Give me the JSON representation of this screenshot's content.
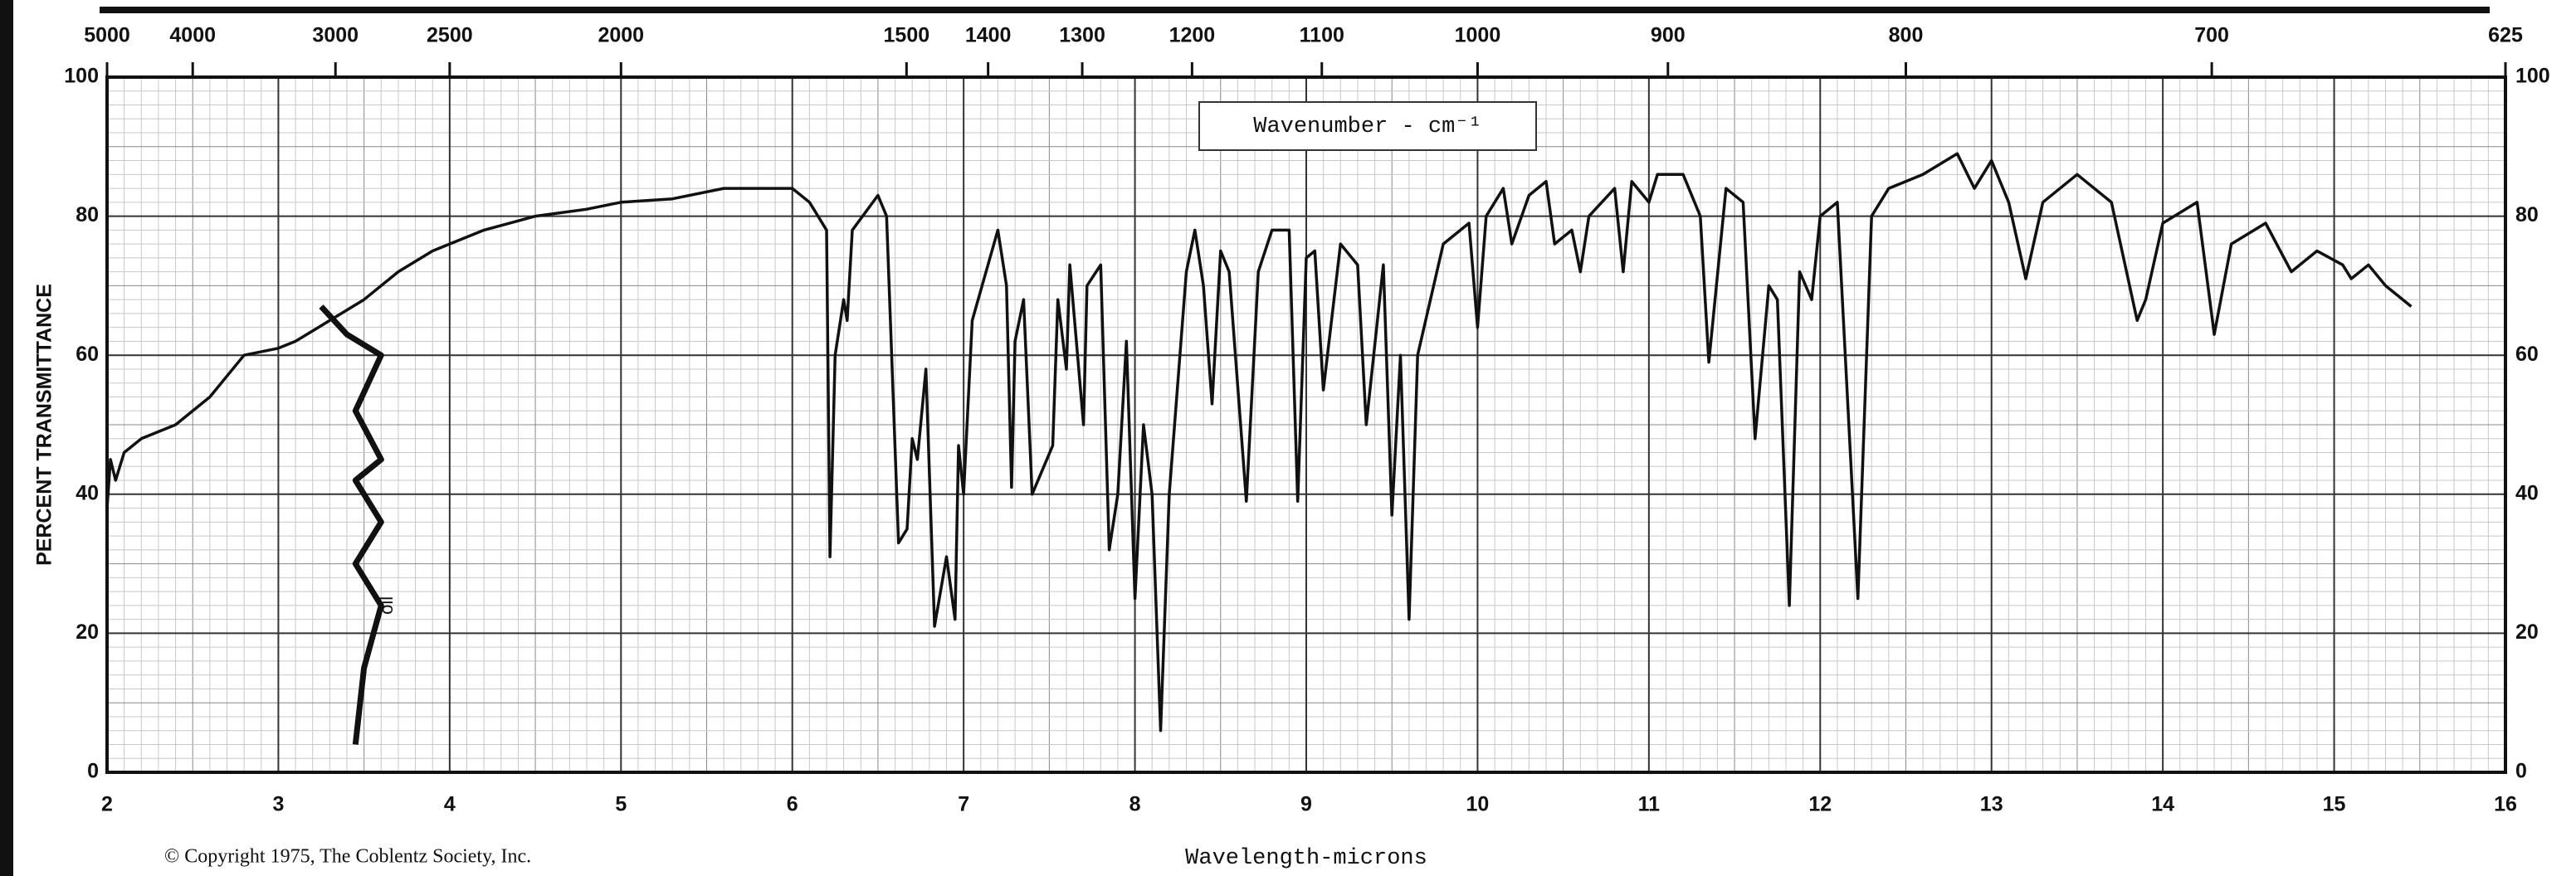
{
  "chart_data": {
    "type": "line",
    "x2label": "Wavenumber - cm⁻¹",
    "xlabel": "Wavelength-microns",
    "ylabel": "PERCENT TRANSMITTANCE",
    "annotations": [
      "© Copyright 1975, The Coblentz Society, Inc."
    ],
    "xlim": [
      2,
      16
    ],
    "xticks": [
      2,
      3,
      4,
      5,
      6,
      7,
      8,
      9,
      10,
      11,
      12,
      13,
      14,
      15,
      16
    ],
    "ylim": [
      0,
      100
    ],
    "yticks": [
      0,
      20,
      40,
      60,
      80,
      100
    ],
    "x2scale": "reciprocal",
    "x2ticks": [
      5000,
      4000,
      3000,
      2500,
      2000,
      1500,
      1400,
      1300,
      1200,
      1100,
      1000,
      900,
      800,
      700,
      625
    ],
    "grid": true,
    "series": [
      {
        "color": "#111111",
        "x": [
          2.0,
          2.02,
          2.05,
          2.1,
          2.2,
          2.4,
          2.6,
          2.7,
          2.8,
          3.0,
          3.1,
          3.3,
          3.5,
          3.7,
          3.9,
          4.2,
          4.5,
          4.8,
          5.0,
          5.3,
          5.6,
          5.9,
          6.0,
          6.1,
          6.2,
          6.22,
          6.25,
          6.3,
          6.32,
          6.35,
          6.5,
          6.55,
          6.62,
          6.67,
          6.7,
          6.73,
          6.78,
          6.83,
          6.9,
          6.95,
          6.97,
          7.0,
          7.05,
          7.2,
          7.25,
          7.28,
          7.3,
          7.35,
          7.4,
          7.52,
          7.55,
          7.6,
          7.62,
          7.7,
          7.72,
          7.8,
          7.85,
          7.9,
          7.95,
          8.0,
          8.05,
          8.1,
          8.15,
          8.2,
          8.3,
          8.35,
          8.4,
          8.45,
          8.5,
          8.55,
          8.65,
          8.72,
          8.8,
          8.9,
          8.95,
          9.0,
          9.05,
          9.1,
          9.2,
          9.3,
          9.35,
          9.45,
          9.5,
          9.55,
          9.6,
          9.65,
          9.8,
          9.95,
          10.0,
          10.05,
          10.15,
          10.2,
          10.3,
          10.4,
          10.45,
          10.55,
          10.6,
          10.65,
          10.8,
          10.85,
          10.9,
          11.0,
          11.05,
          11.2,
          11.3,
          11.35,
          11.45,
          11.55,
          11.62,
          11.7,
          11.75,
          11.82,
          11.88,
          11.95,
          12.0,
          12.1,
          12.22,
          12.3,
          12.4,
          12.6,
          12.8,
          12.9,
          13.0,
          13.1,
          13.2,
          13.3,
          13.5,
          13.7,
          13.85,
          13.9,
          14.0,
          14.2,
          14.3,
          14.4,
          14.6,
          14.75,
          14.9,
          15.05,
          15.1,
          15.2,
          15.3,
          15.45
        ],
        "values": [
          38,
          45,
          42,
          46,
          48,
          50,
          54,
          57,
          60,
          61,
          62,
          65,
          68,
          72,
          75,
          78,
          80,
          81,
          82,
          82.5,
          84,
          84,
          84,
          82,
          78,
          31,
          60,
          68,
          65,
          78,
          83,
          80,
          33,
          35,
          48,
          45,
          58,
          21,
          31,
          22,
          47,
          40,
          65,
          78,
          70,
          41,
          62,
          68,
          40,
          47,
          68,
          58,
          73,
          50,
          70,
          73,
          32,
          40,
          62,
          25,
          50,
          40,
          6,
          40,
          72,
          78,
          70,
          53,
          75,
          72,
          39,
          72,
          78,
          78,
          39,
          74,
          75,
          55,
          76,
          73,
          50,
          73,
          37,
          60,
          22,
          60,
          76,
          79,
          64,
          80,
          84,
          76,
          83,
          85,
          76,
          78,
          72,
          80,
          84,
          72,
          85,
          82,
          86,
          86,
          80,
          59,
          84,
          82,
          48,
          70,
          68,
          24,
          72,
          68,
          80,
          82,
          25,
          80,
          84,
          86,
          89,
          84,
          88,
          82,
          71,
          82,
          86,
          82,
          65,
          68,
          79,
          82,
          63,
          76,
          79,
          72,
          75,
          73,
          71,
          73,
          70,
          67
        ]
      },
      {
        "name": "oil",
        "color": "#111111",
        "x": [
          3.25,
          3.4,
          3.6,
          3.45,
          3.6,
          3.45,
          3.6,
          3.45,
          3.6,
          3.5,
          3.45
        ],
        "values": [
          67,
          63,
          60,
          52,
          45,
          42,
          36,
          30,
          24,
          15,
          4
        ]
      }
    ]
  }
}
